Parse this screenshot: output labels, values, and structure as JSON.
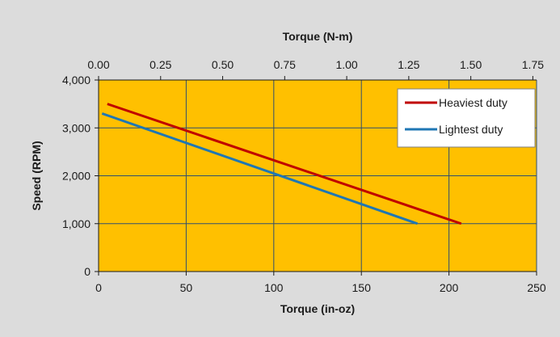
{
  "chart_data": {
    "type": "line",
    "colors": {
      "background": "#dcdcdc",
      "plot_area": "#ffc000",
      "gridlines": "#2f4f6f",
      "axis": "#1a1a1a"
    },
    "x_axis": {
      "title": "Torque (in-oz)",
      "range": [
        0,
        250
      ],
      "ticks": [
        0,
        50,
        100,
        150,
        200,
        250
      ],
      "tick_labels": [
        "0",
        "50",
        "100",
        "150",
        "200",
        "250"
      ],
      "gridlines": true
    },
    "x2_axis": {
      "title": "Torque (N-m)",
      "range": [
        0,
        1.765
      ],
      "ticks": [
        0,
        0.25,
        0.5,
        0.75,
        1.0,
        1.25,
        1.5,
        1.75
      ],
      "tick_labels": [
        "0.00",
        "0.25",
        "0.50",
        "0.75",
        "1.00",
        "1.25",
        "1.50",
        "1.75"
      ]
    },
    "y_axis": {
      "title": "Speed (RPM)",
      "range": [
        0,
        4000
      ],
      "ticks": [
        0,
        1000,
        2000,
        3000,
        4000
      ],
      "tick_labels": [
        "0",
        "1,000",
        "2,000",
        "3,000",
        "4,000"
      ],
      "gridlines": true
    },
    "legend": {
      "position": "top-right"
    },
    "series": [
      {
        "name": "Heaviest duty",
        "color": "#c00000",
        "x": [
          5,
          207
        ],
        "y": [
          3500,
          1000
        ]
      },
      {
        "name": "Lightest duty",
        "color": "#1f77b4",
        "x": [
          2,
          182
        ],
        "y": [
          3300,
          1000
        ]
      }
    ]
  }
}
